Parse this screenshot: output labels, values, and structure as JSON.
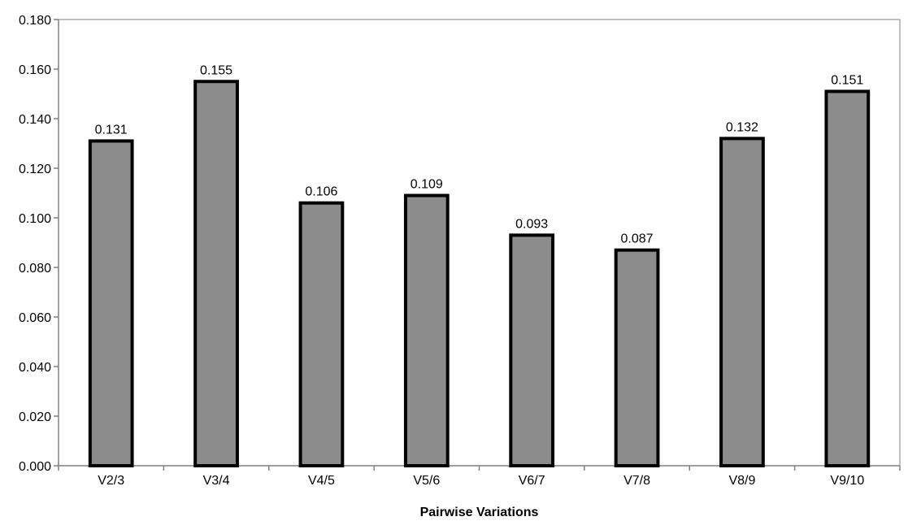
{
  "chart_data": {
    "type": "bar",
    "title": "",
    "xlabel": "Pairwise Variations",
    "ylabel": "",
    "categories": [
      "V2/3",
      "V3/4",
      "V4/5",
      "V5/6",
      "V6/7",
      "V7/8",
      "V8/9",
      "V9/10"
    ],
    "values": [
      0.131,
      0.155,
      0.106,
      0.109,
      0.093,
      0.087,
      0.132,
      0.151
    ],
    "value_labels": [
      "0.131",
      "0.155",
      "0.106",
      "0.109",
      "0.093",
      "0.087",
      "0.132",
      "0.151"
    ],
    "ylim": [
      0,
      0.18
    ],
    "yticks": [
      0,
      0.02,
      0.04,
      0.06,
      0.08,
      0.1,
      0.12,
      0.14,
      0.16,
      0.18
    ],
    "ytick_labels": [
      "0.000",
      "0.020",
      "0.040",
      "0.060",
      "0.080",
      "0.100",
      "0.120",
      "0.140",
      "0.160",
      "0.180"
    ],
    "grid": false,
    "legend": "none",
    "colors": {
      "bar_fill": "#8c8c8c",
      "bar_stroke": "#000000",
      "axis": "#808080",
      "plot_border": "#808080"
    }
  }
}
